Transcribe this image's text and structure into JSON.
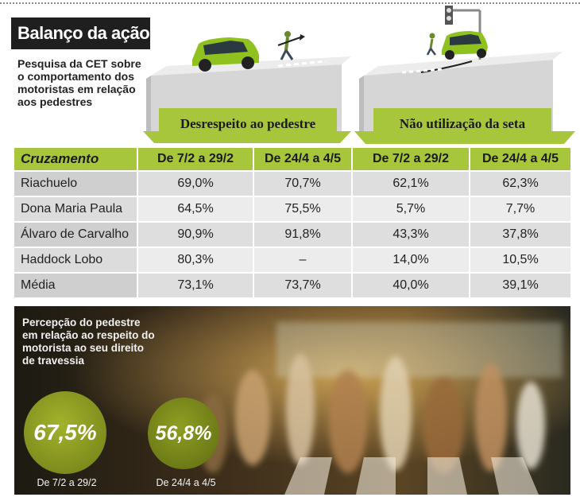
{
  "header": {
    "title": "Balanço da ação",
    "subtitle": "Pesquisa da CET sobre o comportamento dos motoristas em relação aos pedestres"
  },
  "groups": [
    {
      "label": "Desrespeito ao pedestre"
    },
    {
      "label": "Não utilização da seta"
    }
  ],
  "colors": {
    "accent": "#a8c63b",
    "title_bg": "#1f1f1f",
    "circle": "#8a9a22"
  },
  "chart_data": {
    "type": "table",
    "row_header": "Cruzamento",
    "columns": [
      "De 7/2 a 29/2",
      "De 24/4 a 4/5",
      "De 7/2 a 29/2",
      "De 24/4 a 4/5"
    ],
    "rows": [
      {
        "name": "Riachuelo",
        "values": [
          "69,0%",
          "70,7%",
          "62,1%",
          "62,3%"
        ]
      },
      {
        "name": "Dona Maria Paula",
        "values": [
          "64,5%",
          "75,5%",
          "5,7%",
          "7,7%"
        ]
      },
      {
        "name": "Álvaro de Carvalho",
        "values": [
          "90,9%",
          "91,8%",
          "43,3%",
          "37,8%"
        ]
      },
      {
        "name": "Haddock Lobo",
        "values": [
          "80,3%",
          "–",
          "14,0%",
          "10,5%"
        ]
      },
      {
        "name": "Média",
        "values": [
          "73,1%",
          "73,7%",
          "40,0%",
          "39,1%"
        ]
      }
    ]
  },
  "perception": {
    "title": "Percepção do pedestre em relação ao respeito do motorista ao seu direito de travessia",
    "items": [
      {
        "value": "67,5%",
        "label": "De 7/2 a 29/2"
      },
      {
        "value": "56,8%",
        "label": "De 24/4 a 4/5"
      }
    ]
  }
}
